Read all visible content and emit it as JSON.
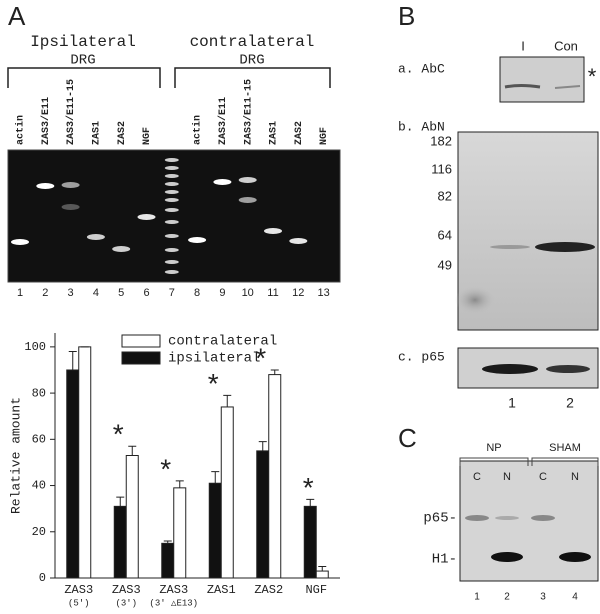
{
  "panel_a": {
    "letter": "A",
    "groups": [
      {
        "label": "Ipsilateral",
        "sublabel": "DRG"
      },
      {
        "label": "contralateral",
        "sublabel": "DRG"
      }
    ],
    "lanes": [
      {
        "label": "actin",
        "number": 1
      },
      {
        "label": "ZAS3/E11",
        "number": 2
      },
      {
        "label": "ZAS3/E11-15",
        "number": 3
      },
      {
        "label": "ZAS1",
        "number": 4
      },
      {
        "label": "ZAS2",
        "number": 5
      },
      {
        "label": "NGF",
        "number": 6
      },
      {
        "label": null,
        "number": 7
      },
      {
        "label": "actin",
        "number": 8
      },
      {
        "label": "ZAS3/E11",
        "number": 9
      },
      {
        "label": "ZAS3/E11-15",
        "number": 10
      },
      {
        "label": "ZAS1",
        "number": 11
      },
      {
        "label": "ZAS2",
        "number": 12
      },
      {
        "label": "NGF",
        "number": 13
      }
    ]
  },
  "panel_b": {
    "letter": "B",
    "a": {
      "label": "a. AbC",
      "lanes": [
        "I",
        "Con"
      ],
      "mark": "*"
    },
    "b": {
      "label": "b. AbN",
      "markers": [
        182,
        116,
        82,
        64,
        49
      ]
    },
    "c": {
      "label": "c. p65",
      "lanes": [
        "1",
        "2"
      ]
    }
  },
  "panel_c": {
    "letter": "C",
    "groups": [
      "NP",
      "SHAM"
    ],
    "lanes": [
      "C",
      "N",
      "C",
      "N"
    ],
    "bands": [
      "p65-",
      "H1-"
    ],
    "numbers": [
      "1",
      "2",
      "3",
      "4"
    ]
  },
  "chart_data": {
    "type": "bar",
    "y_label": "Relative amount",
    "categories": [
      "ZAS3",
      "ZAS3",
      "ZAS3",
      "ZAS1",
      "ZAS2",
      "NGF"
    ],
    "category_sublabels": [
      "(5′)",
      "(3′)",
      "(3′ △E13)",
      null,
      null,
      null
    ],
    "significance_marks": [
      null,
      "*",
      "*",
      "*",
      "*",
      "*"
    ],
    "series": [
      {
        "name": "ipsilateral",
        "color": "#111111",
        "values": [
          90,
          31,
          15,
          41,
          55,
          31
        ],
        "errors": [
          8,
          4,
          1,
          5,
          4,
          3
        ]
      },
      {
        "name": "contralateral",
        "color": "#ffffff",
        "values": [
          100,
          53,
          39,
          74,
          88,
          3
        ],
        "errors": [
          0,
          4,
          3,
          5,
          2,
          2
        ]
      }
    ],
    "ylim": [
      0,
      106
    ],
    "yticks": [
      0,
      20,
      40,
      60,
      80,
      100
    ]
  }
}
